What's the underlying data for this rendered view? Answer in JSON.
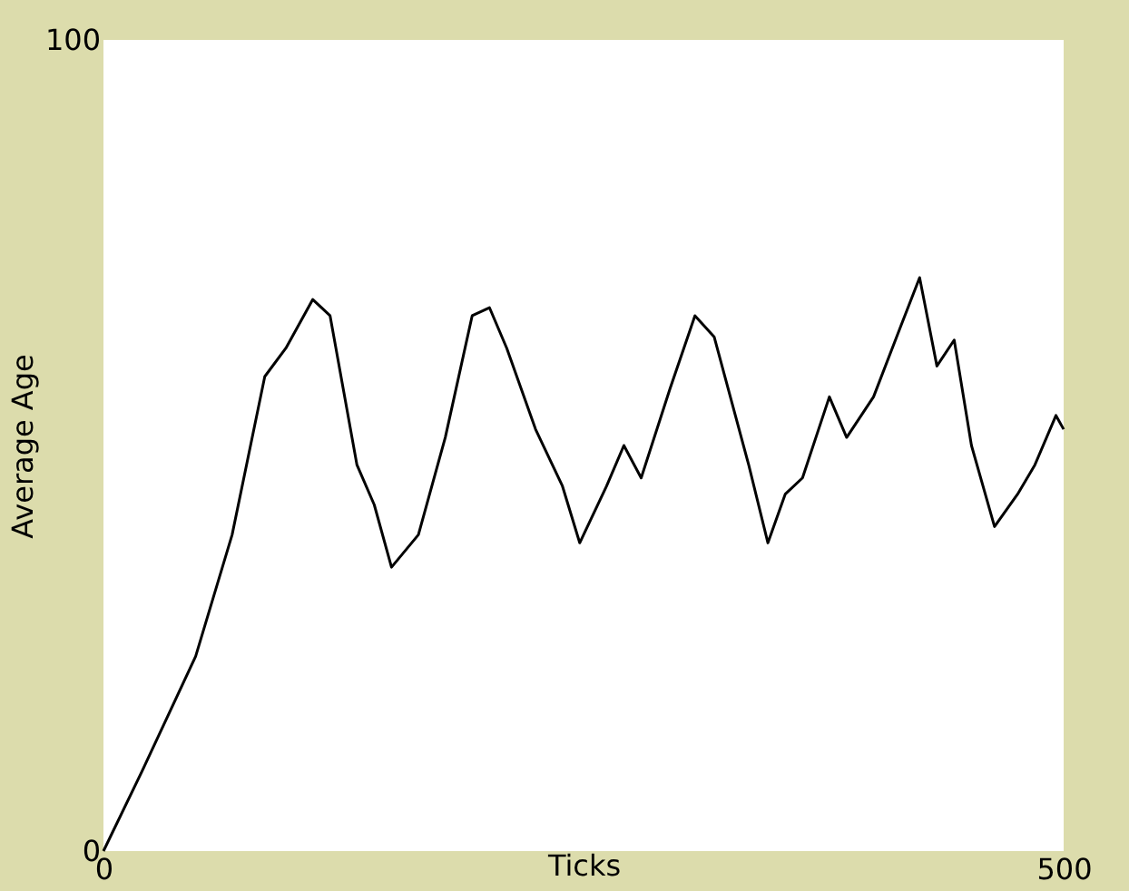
{
  "chart_data": {
    "type": "line",
    "xlabel": "Ticks",
    "ylabel": "Average Age",
    "xlim": [
      0,
      500
    ],
    "ylim": [
      0,
      100
    ],
    "xticks": [
      0,
      500
    ],
    "yticks": [
      0,
      100
    ],
    "grid": false,
    "marker": "none",
    "line_style": "solid",
    "series": [
      {
        "color": "#000000",
        "x": [
          0,
          20,
          48,
          67,
          84,
          95,
          109,
          118,
          132,
          141,
          150,
          164,
          178,
          192,
          201,
          210,
          225,
          239,
          248,
          262,
          271,
          280,
          295,
          308,
          318,
          336,
          346,
          355,
          364,
          378,
          387,
          401,
          415,
          425,
          434,
          443,
          452,
          464,
          476,
          485,
          496,
          500
        ],
        "values": [
          0,
          9.8,
          24,
          39,
          58.5,
          62,
          68,
          66,
          47.6,
          42.7,
          35,
          39,
          51,
          66,
          67,
          62,
          52,
          45,
          38,
          45,
          50,
          46,
          57,
          66,
          63.4,
          47.6,
          38,
          44,
          46,
          56,
          51,
          56,
          64.6,
          70.7,
          59.8,
          63,
          50,
          40,
          44,
          47.6,
          53.7,
          52
        ]
      }
    ]
  }
}
